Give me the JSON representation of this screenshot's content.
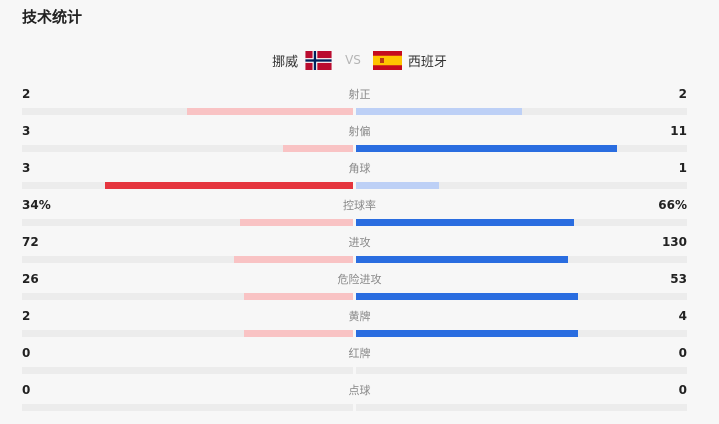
{
  "header": {
    "title": "技术统计"
  },
  "teams": {
    "home": {
      "name": "挪威",
      "flag": "norway-flag-icon"
    },
    "vs": "VS",
    "away": {
      "name": "西班牙",
      "flag": "spain-flag-icon"
    }
  },
  "colors": {
    "home_strong": "#e5353e",
    "home_light": "#f9c3c4",
    "away_strong": "#2a6de0",
    "away_light": "#bdd0f6",
    "track": "#ececec"
  },
  "stats": [
    {
      "label": "射正",
      "home": "2",
      "away": "2",
      "home_ratio": 0.5,
      "away_ratio": 0.5,
      "leader": "none"
    },
    {
      "label": "射偏",
      "home": "3",
      "away": "11",
      "home_ratio": 0.21,
      "away_ratio": 0.79,
      "leader": "away"
    },
    {
      "label": "角球",
      "home": "3",
      "away": "1",
      "home_ratio": 0.75,
      "away_ratio": 0.25,
      "leader": "home"
    },
    {
      "label": "控球率",
      "home": "34%",
      "away": "66%",
      "home_ratio": 0.34,
      "away_ratio": 0.66,
      "leader": "away"
    },
    {
      "label": "进攻",
      "home": "72",
      "away": "130",
      "home_ratio": 0.36,
      "away_ratio": 0.64,
      "leader": "away"
    },
    {
      "label": "危险进攻",
      "home": "26",
      "away": "53",
      "home_ratio": 0.33,
      "away_ratio": 0.67,
      "leader": "away"
    },
    {
      "label": "黄牌",
      "home": "2",
      "away": "4",
      "home_ratio": 0.33,
      "away_ratio": 0.67,
      "leader": "away"
    },
    {
      "label": "红牌",
      "home": "0",
      "away": "0",
      "home_ratio": 0,
      "away_ratio": 0,
      "leader": "none"
    },
    {
      "label": "点球",
      "home": "0",
      "away": "0",
      "home_ratio": 0,
      "away_ratio": 0,
      "leader": "none"
    }
  ]
}
